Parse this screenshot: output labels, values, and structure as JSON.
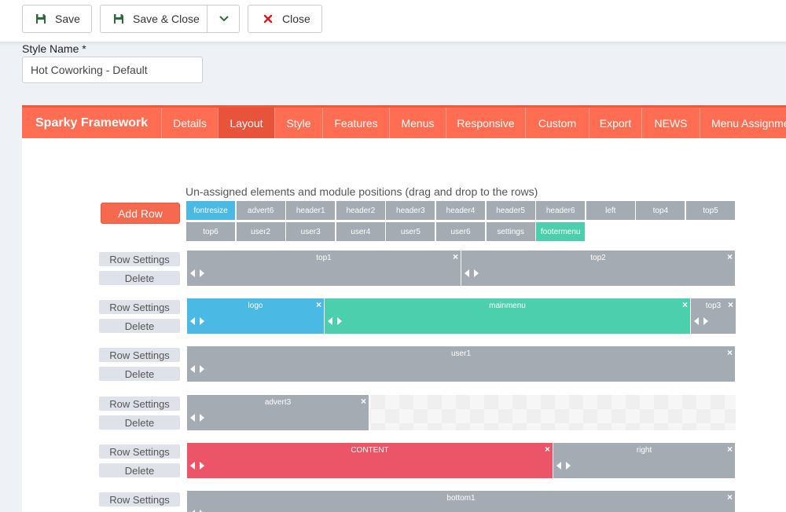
{
  "toolbar": {
    "save_label": "Save",
    "save_close_label": "Save & Close",
    "close_label": "Close"
  },
  "style_name": {
    "label": "Style Name *",
    "value": "Hot Coworking - Default"
  },
  "nav": {
    "brand": "Sparky Framework",
    "tabs": [
      {
        "label": "Details"
      },
      {
        "label": "Layout",
        "active": true
      },
      {
        "label": "Style"
      },
      {
        "label": "Features"
      },
      {
        "label": "Menus"
      },
      {
        "label": "Responsive"
      },
      {
        "label": "Custom"
      },
      {
        "label": "Export"
      },
      {
        "label": "NEWS"
      },
      {
        "label": "Menu Assignme"
      }
    ]
  },
  "layout": {
    "hint": "Un-assigned elements and module positions (drag and drop to the rows)",
    "add_row_label": "Add Row",
    "unassigned": [
      {
        "label": "fontresize",
        "color": "blue"
      },
      {
        "label": "advert6"
      },
      {
        "label": "header1"
      },
      {
        "label": "header2"
      },
      {
        "label": "header3"
      },
      {
        "label": "header4"
      },
      {
        "label": "header5"
      },
      {
        "label": "header6"
      },
      {
        "label": "left"
      },
      {
        "label": "top4"
      },
      {
        "label": "top5"
      },
      {
        "label": "top6"
      },
      {
        "label": "user2"
      },
      {
        "label": "user3"
      },
      {
        "label": "user4"
      },
      {
        "label": "user5"
      },
      {
        "label": "user6"
      },
      {
        "label": "settings"
      },
      {
        "label": "footermenu",
        "color": "green"
      }
    ],
    "row_settings_label": "Row Settings",
    "delete_label": "Delete",
    "close_glyph": "×",
    "rows": [
      {
        "cells": [
          {
            "label": "top1",
            "span": 0.5
          },
          {
            "label": "top2",
            "span": 0.5
          }
        ]
      },
      {
        "cells": [
          {
            "label": "logo",
            "span": 0.25,
            "color": "blue"
          },
          {
            "label": "mainmenu",
            "span": 0.667,
            "color": "green"
          },
          {
            "label": "top3",
            "span": 0.083
          }
        ]
      },
      {
        "cells": [
          {
            "label": "user1",
            "span": 1
          }
        ]
      },
      {
        "cells": [
          {
            "label": "advert3",
            "span": 0.333
          }
        ]
      },
      {
        "cells": [
          {
            "label": "CONTENT",
            "span": 0.667,
            "color": "red"
          },
          {
            "label": "right",
            "span": 0.333
          }
        ]
      },
      {
        "cells": [
          {
            "label": "bottom1",
            "span": 1
          }
        ]
      }
    ]
  },
  "colors": {
    "accent": "#ff6e52",
    "module_gray": "#a4abb3",
    "module_blue": "#4ab9e4",
    "module_green": "#4ccfac",
    "module_red": "#ec5567"
  }
}
